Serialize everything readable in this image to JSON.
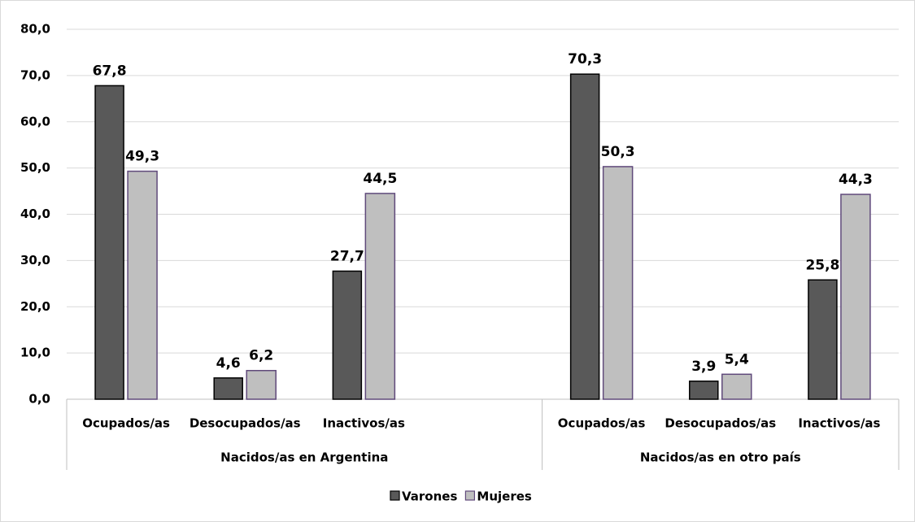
{
  "chart_data": {
    "type": "bar",
    "groups": [
      {
        "name": "Nacidos/as en Argentina",
        "categories": [
          "Ocupados/as",
          "Desocupados/as",
          "Inactivos/as",
          null
        ]
      },
      {
        "name": "Nacidos/as en otro país",
        "categories": [
          "Ocupados/as",
          "Desocupados/as",
          "Inactivos/as"
        ]
      }
    ],
    "series": [
      {
        "name": "Varones",
        "color": "#595959",
        "stroke": "#000000",
        "values": [
          67.8,
          4.6,
          27.7,
          null,
          70.3,
          3.9,
          25.8
        ],
        "value_labels": [
          "67,8",
          "4,6",
          "27,7",
          null,
          "70,3",
          "3,9",
          "25,8"
        ]
      },
      {
        "name": "Mujeres",
        "color": "#bfbfbf",
        "stroke": "#604a7b",
        "values": [
          49.3,
          6.2,
          44.5,
          null,
          50.3,
          5.4,
          44.3
        ],
        "value_labels": [
          "49,3",
          "6,2",
          "44,5",
          null,
          "50,3",
          "5,4",
          "44,3"
        ]
      }
    ],
    "ylim": [
      0,
      80
    ],
    "yticks": [
      {
        "value": 0,
        "label": "0,0"
      },
      {
        "value": 10,
        "label": "10,0"
      },
      {
        "value": 20,
        "label": "20,0"
      },
      {
        "value": 30,
        "label": "30,0"
      },
      {
        "value": 40,
        "label": "40,0"
      },
      {
        "value": 50,
        "label": "50,0"
      },
      {
        "value": 60,
        "label": "60,0"
      },
      {
        "value": 70,
        "label": "70,0"
      },
      {
        "value": 80,
        "label": "80,0"
      }
    ],
    "grid": true,
    "legend": "bottom"
  }
}
